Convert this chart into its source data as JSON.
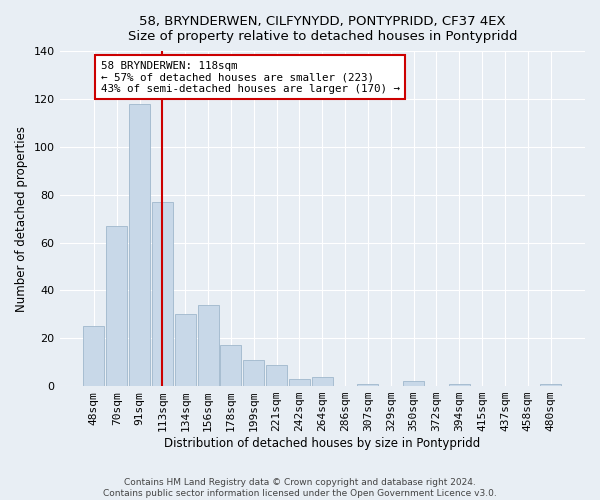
{
  "title": "58, BRYNDERWEN, CILFYNYDD, PONTYPRIDD, CF37 4EX",
  "subtitle": "Size of property relative to detached houses in Pontypridd",
  "xlabel": "Distribution of detached houses by size in Pontypridd",
  "ylabel": "Number of detached properties",
  "bar_labels": [
    "48sqm",
    "70sqm",
    "91sqm",
    "113sqm",
    "134sqm",
    "156sqm",
    "178sqm",
    "199sqm",
    "221sqm",
    "242sqm",
    "264sqm",
    "286sqm",
    "307sqm",
    "329sqm",
    "350sqm",
    "372sqm",
    "394sqm",
    "415sqm",
    "437sqm",
    "458sqm",
    "480sqm"
  ],
  "bar_values": [
    25,
    67,
    118,
    77,
    30,
    34,
    17,
    11,
    9,
    3,
    4,
    0,
    1,
    0,
    2,
    0,
    1,
    0,
    0,
    0,
    1
  ],
  "bar_color": "#c8d8e8",
  "bar_edge_color": "#a0b8cc",
  "vline_x": 3.5,
  "vline_color": "#cc0000",
  "ylim": [
    0,
    140
  ],
  "yticks": [
    0,
    20,
    40,
    60,
    80,
    100,
    120,
    140
  ],
  "annotation_text": "58 BRYNDERWEN: 118sqm\n← 57% of detached houses are smaller (223)\n43% of semi-detached houses are larger (170) →",
  "annotation_box_color": "#ffffff",
  "annotation_box_edge": "#cc0000",
  "footer_line1": "Contains HM Land Registry data © Crown copyright and database right 2024.",
  "footer_line2": "Contains public sector information licensed under the Open Government Licence v3.0.",
  "background_color": "#e8eef4",
  "plot_bg_color": "#e8eef4",
  "grid_color": "#ffffff"
}
